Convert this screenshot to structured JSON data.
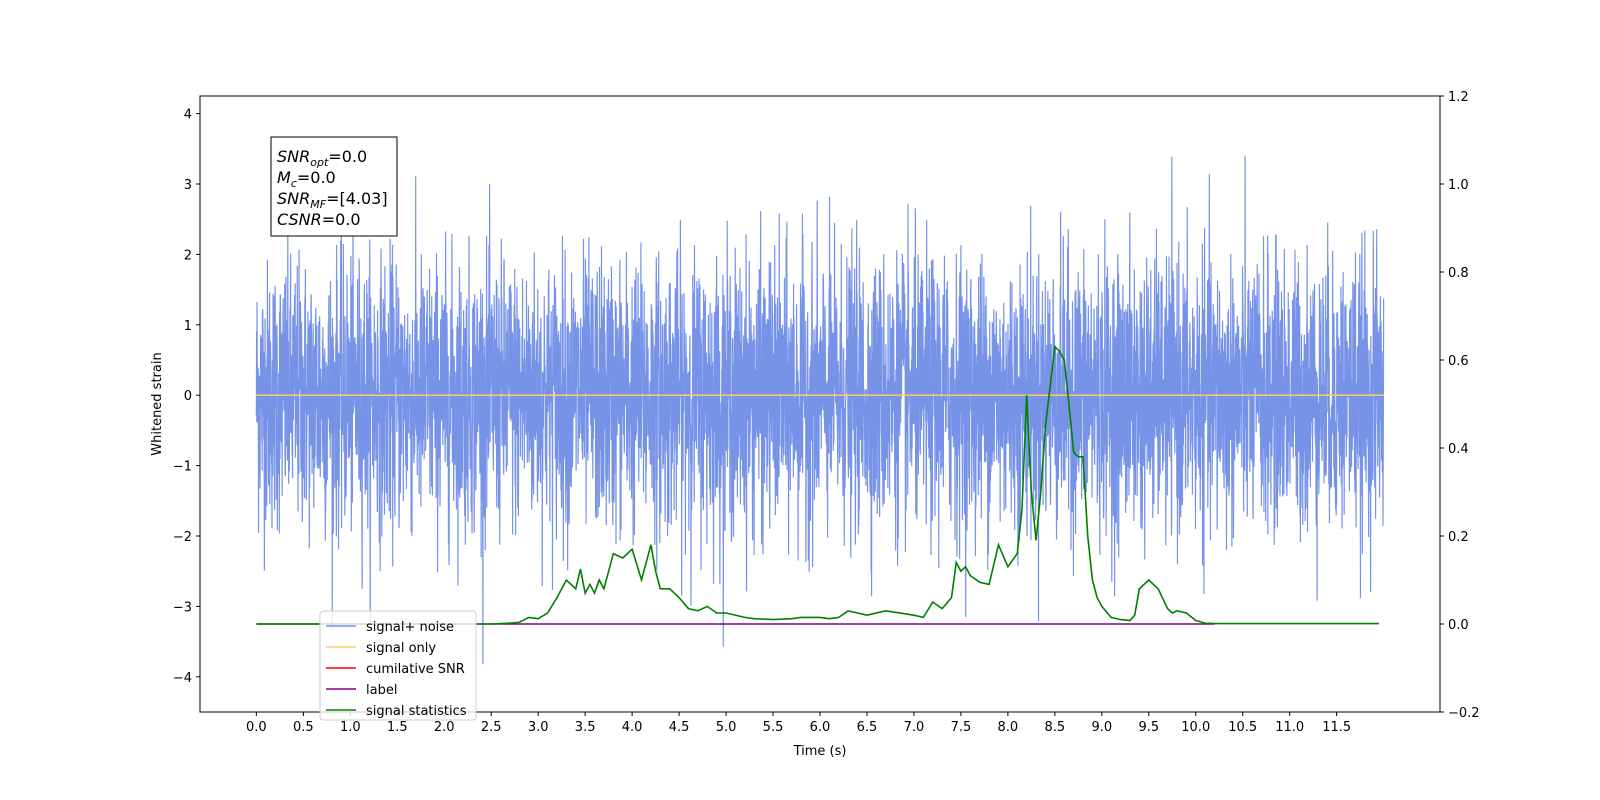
{
  "chart_data": {
    "type": "line",
    "xlabel": "Time (s)",
    "ylabel": "Whitened strain",
    "xlim": [
      -0.6,
      12.6
    ],
    "ylim": [
      -4.5,
      4.25
    ],
    "y2lim": [
      -0.2,
      1.2
    ],
    "xticks": [
      "0.0",
      "0.5",
      "1.0",
      "1.5",
      "2.0",
      "2.5",
      "3.0",
      "3.5",
      "4.0",
      "4.5",
      "5.0",
      "5.5",
      "6.0",
      "6.5",
      "7.0",
      "7.5",
      "8.0",
      "8.5",
      "9.0",
      "9.5",
      "10.0",
      "10.5",
      "11.0",
      "11.5"
    ],
    "yticks": [
      "4",
      "3",
      "2",
      "1",
      "0",
      "−1",
      "−2",
      "−3",
      "−4"
    ],
    "y2ticks": [
      "1.2",
      "1.0",
      "0.8",
      "0.6",
      "0.4",
      "0.2",
      "0.0",
      "−0.2"
    ],
    "grid": false,
    "legend_position": "lower-left",
    "annotation": [
      {
        "main": "SNR",
        "sub": "opt",
        "value": "=0.0"
      },
      {
        "main": "M",
        "sub": "c",
        "value": "=0.0"
      },
      {
        "main": "SNR",
        "sub": "MF",
        "value": "=[4.03]"
      },
      {
        "main": "CSNR",
        "sub": "",
        "value": "=0.0"
      }
    ],
    "series": [
      {
        "name": "signal+ noise",
        "color": "#7793e8",
        "axis": "left",
        "description": "white noise, std about 0.95, peaks to about ±3.8",
        "x_range": [
          0.0,
          12.0
        ]
      },
      {
        "name": "signal only",
        "color": "#ffc966",
        "axis": "left",
        "constant": 0.0,
        "x_range": [
          0.0,
          12.0
        ]
      },
      {
        "name": "cumilative SNR",
        "color": "#ff0000",
        "axis": "right"
      },
      {
        "name": "label",
        "color": "#800080",
        "axis": "right",
        "constant": 0.0,
        "x_range": [
          0.0,
          10.2
        ]
      },
      {
        "name": "signal statistics",
        "color": "#008000",
        "axis": "right",
        "x": [
          0.0,
          2.5,
          2.7,
          2.8,
          2.9,
          3.0,
          3.1,
          3.2,
          3.3,
          3.4,
          3.45,
          3.5,
          3.55,
          3.6,
          3.65,
          3.7,
          3.75,
          3.8,
          3.9,
          4.0,
          4.1,
          4.15,
          4.2,
          4.25,
          4.3,
          4.35,
          4.4,
          4.5,
          4.6,
          4.7,
          4.8,
          4.9,
          5.0,
          5.2,
          5.3,
          5.5,
          5.7,
          5.8,
          6.0,
          6.1,
          6.2,
          6.3,
          6.4,
          6.5,
          6.7,
          7.0,
          7.1,
          7.2,
          7.3,
          7.4,
          7.45,
          7.5,
          7.55,
          7.6,
          7.7,
          7.8,
          7.9,
          8.0,
          8.1,
          8.15,
          8.2,
          8.25,
          8.3,
          8.35,
          8.4,
          8.5,
          8.55,
          8.6,
          8.65,
          8.7,
          8.75,
          8.8,
          8.85,
          8.9,
          8.95,
          9.0,
          9.1,
          9.2,
          9.3,
          9.35,
          9.4,
          9.5,
          9.55,
          9.6,
          9.7,
          9.75,
          9.8,
          9.9,
          10.0,
          10.1,
          10.2,
          11.95
        ],
        "values": [
          0.0,
          0.0,
          0.002,
          0.004,
          0.015,
          0.012,
          0.025,
          0.06,
          0.1,
          0.08,
          0.125,
          0.07,
          0.09,
          0.07,
          0.1,
          0.08,
          0.12,
          0.16,
          0.15,
          0.17,
          0.1,
          0.14,
          0.18,
          0.12,
          0.08,
          0.08,
          0.08,
          0.06,
          0.035,
          0.03,
          0.04,
          0.025,
          0.025,
          0.015,
          0.012,
          0.01,
          0.012,
          0.015,
          0.015,
          0.012,
          0.015,
          0.03,
          0.025,
          0.02,
          0.03,
          0.02,
          0.015,
          0.05,
          0.035,
          0.06,
          0.14,
          0.12,
          0.13,
          0.11,
          0.095,
          0.09,
          0.18,
          0.13,
          0.16,
          0.26,
          0.52,
          0.3,
          0.19,
          0.3,
          0.45,
          0.63,
          0.62,
          0.6,
          0.5,
          0.39,
          0.38,
          0.38,
          0.2,
          0.1,
          0.06,
          0.04,
          0.015,
          0.01,
          0.008,
          0.02,
          0.08,
          0.1,
          0.09,
          0.08,
          0.035,
          0.025,
          0.03,
          0.025,
          0.008,
          0.002,
          0.001,
          0.001
        ]
      }
    ]
  }
}
